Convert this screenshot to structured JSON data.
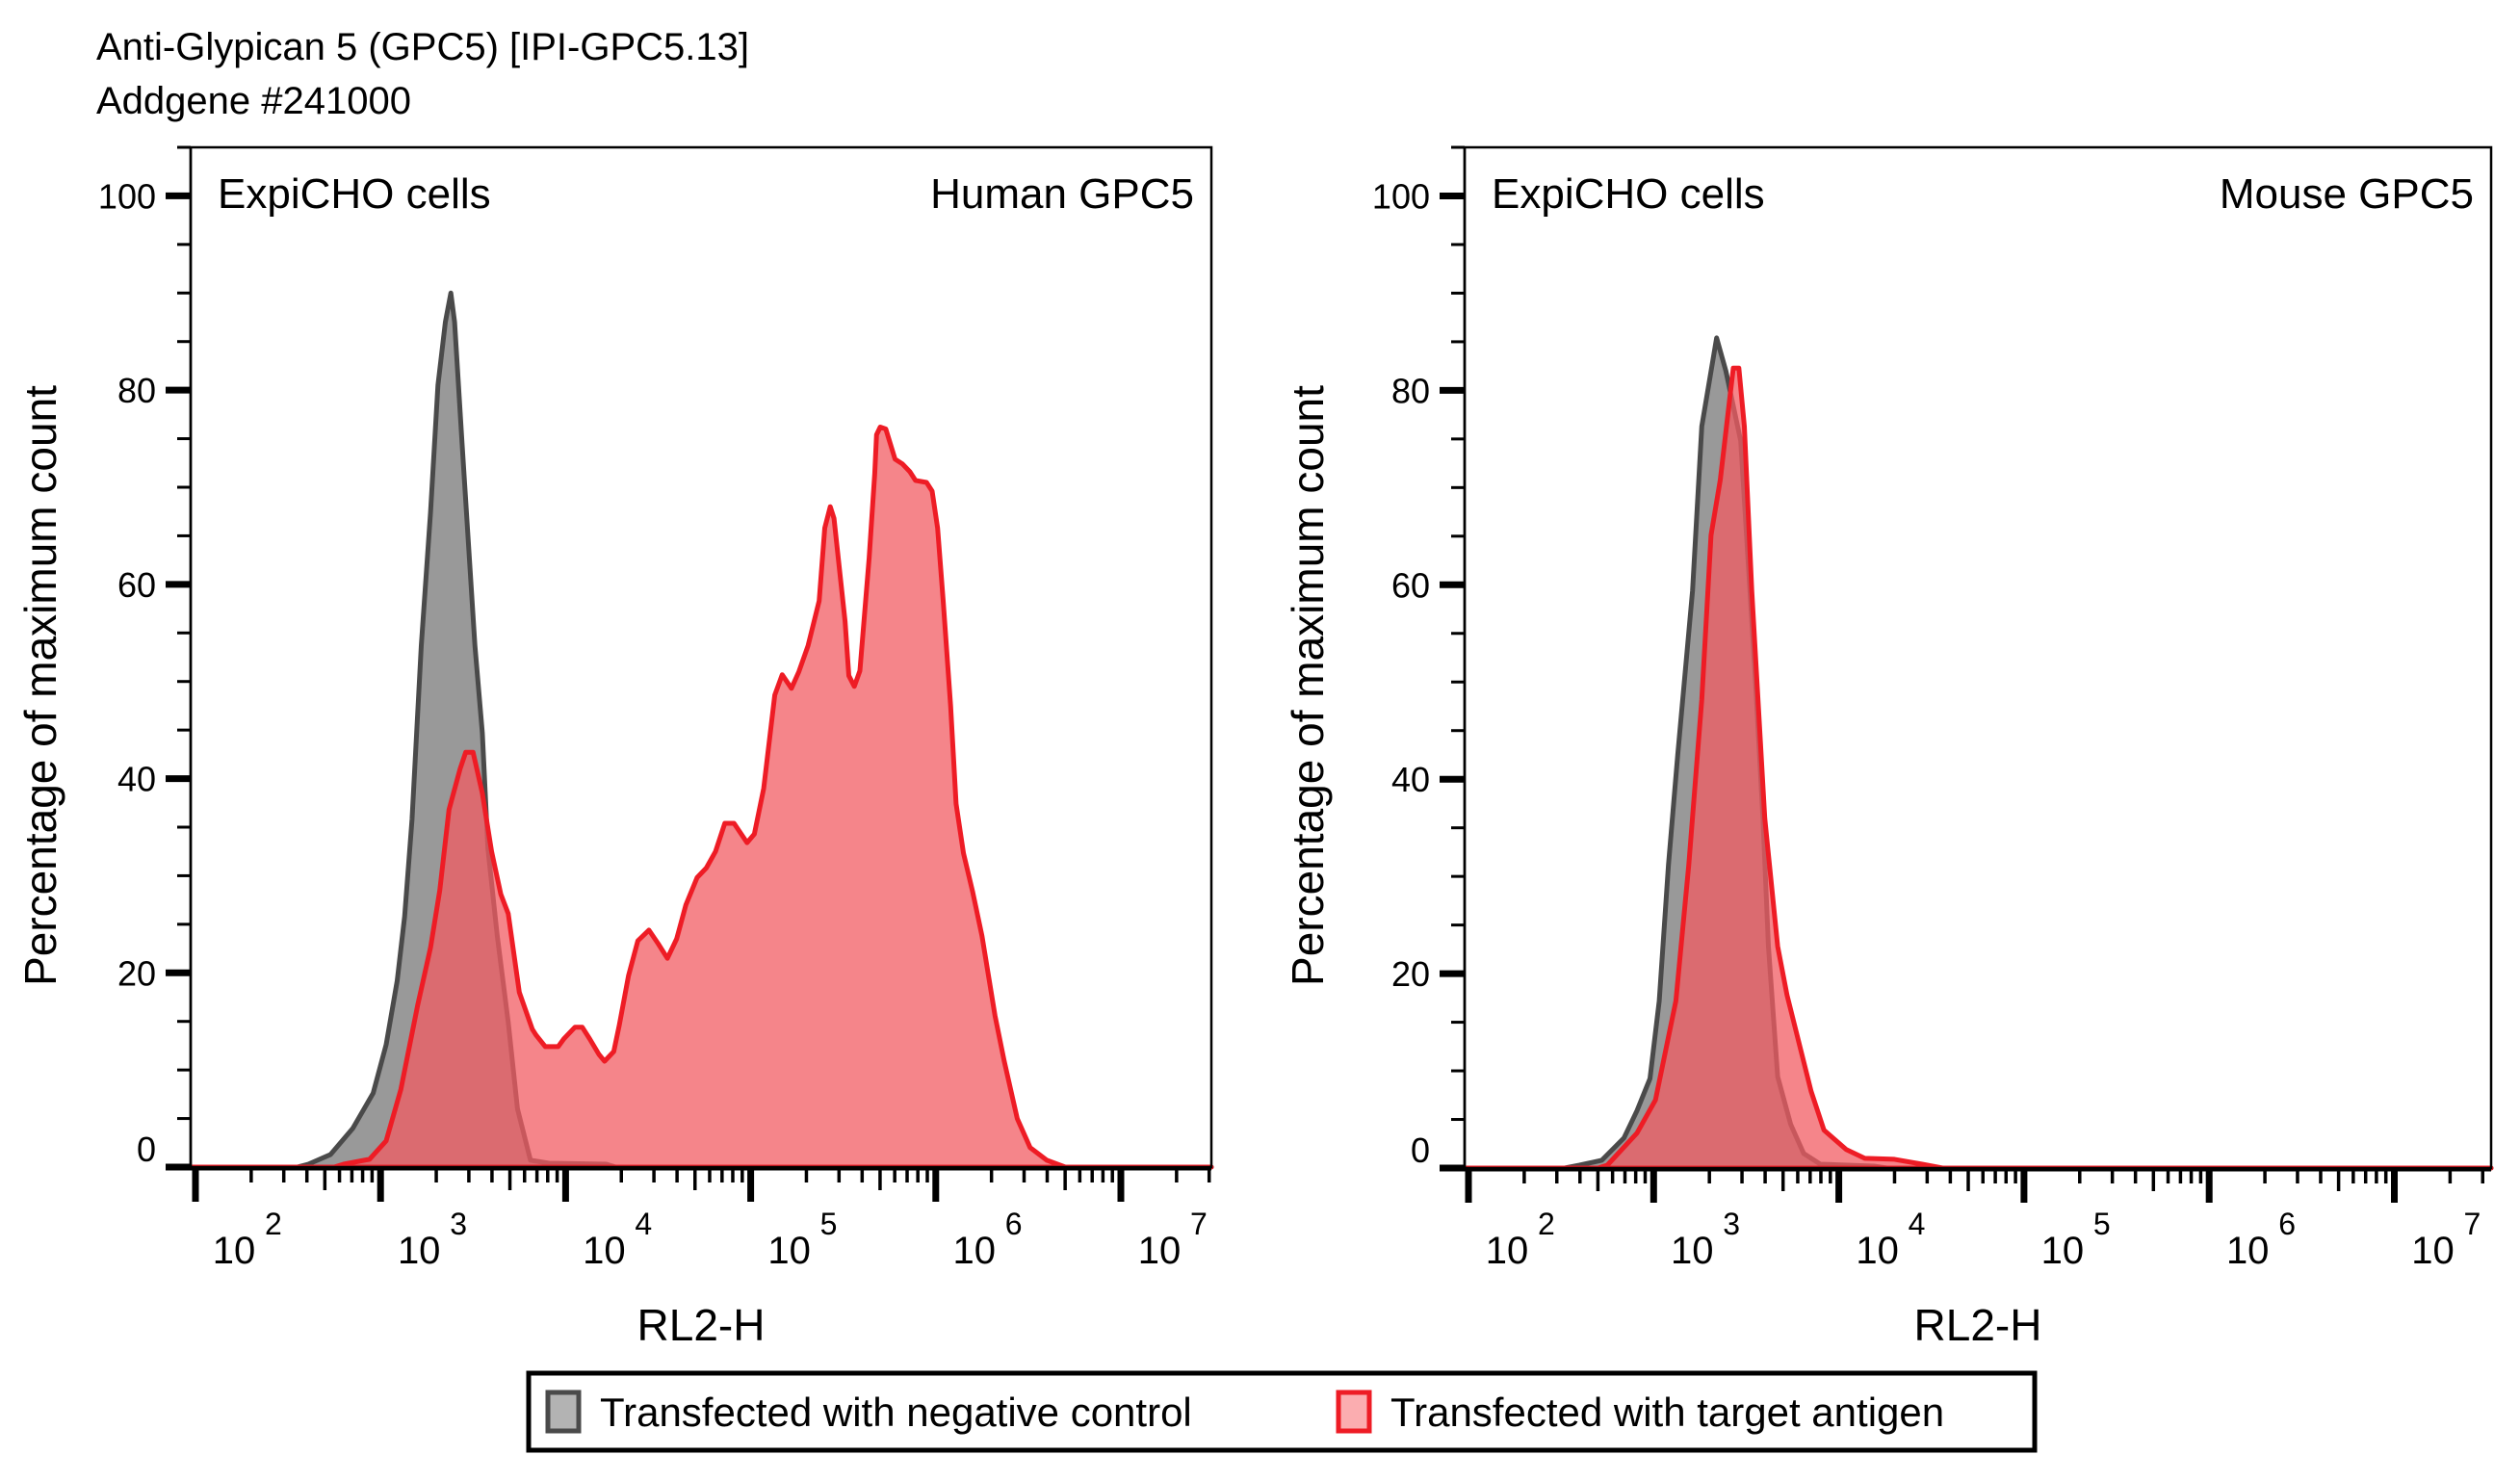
{
  "header": {
    "title": "Anti-Glypican 5 (GPC5) [IPI-GPC5.13]",
    "subtitle": "Addgene #241000"
  },
  "legend": {
    "items": [
      {
        "label": "Transfected with negative control",
        "fill": "#999999",
        "stroke": "#4a4a4a"
      },
      {
        "label": "Transfected with target antigen",
        "fill": "#f98387",
        "stroke": "#ee1c25"
      }
    ]
  },
  "colors": {
    "control_fill": "#999999",
    "control_stroke": "#4a4a4a",
    "antigen_fill": "#f25c63",
    "antigen_stroke": "#ee1c25",
    "overlap_fill": "#cf5256"
  },
  "chart_data": [
    {
      "type": "area",
      "title": "Human GPC5",
      "annotation_left": "ExpiCHO cells",
      "annotation_right": "Human GPC5",
      "xlabel": "RL2-H",
      "ylabel": "Percentage of maximum count",
      "x_scale": "log10",
      "x_units": "log10(RL2-H)",
      "xlim": [
        1.97,
        7.5
      ],
      "ylim": [
        0,
        105
      ],
      "x_ticks": [
        {
          "base": "10",
          "exp": "2",
          "value": 2
        },
        {
          "base": "10",
          "exp": "3",
          "value": 3
        },
        {
          "base": "10",
          "exp": "4",
          "value": 4
        },
        {
          "base": "10",
          "exp": "5",
          "value": 5
        },
        {
          "base": "10",
          "exp": "6",
          "value": 6
        },
        {
          "base": "10",
          "exp": "7",
          "value": 7
        }
      ],
      "y_ticks": [
        "0",
        "20",
        "40",
        "60",
        "80",
        "100"
      ],
      "grid": false,
      "series": [
        {
          "name": "Transfected with negative control",
          "x": [
            2.55,
            2.61,
            2.73,
            2.85,
            2.96,
            3.03,
            3.09,
            3.13,
            3.17,
            3.22,
            3.27,
            3.31,
            3.35,
            3.38,
            3.4,
            3.44,
            3.48,
            3.51,
            3.55,
            3.58,
            3.63,
            3.69,
            3.74,
            3.81,
            3.91,
            4.22,
            4.27
          ],
          "y": [
            0,
            0.3,
            1.3,
            4.0,
            7.6,
            12.6,
            19.2,
            25.8,
            35.8,
            53.7,
            67.4,
            80.5,
            87.0,
            90.0,
            87.0,
            74.6,
            62.6,
            53.7,
            44.7,
            32.8,
            23.9,
            14.9,
            6.0,
            0.7,
            0.4,
            0.3,
            0
          ]
        },
        {
          "name": "Transfected with target antigen",
          "x": [
            2.75,
            2.8,
            2.94,
            3.03,
            3.11,
            3.2,
            3.27,
            3.32,
            3.37,
            3.43,
            3.46,
            3.5,
            3.55,
            3.6,
            3.65,
            3.69,
            3.75,
            3.82,
            3.84,
            3.89,
            3.96,
            3.99,
            4.05,
            4.09,
            4.13,
            4.18,
            4.21,
            4.26,
            4.29,
            4.34,
            4.39,
            4.45,
            4.5,
            4.55,
            4.6,
            4.65,
            4.71,
            4.76,
            4.81,
            4.86,
            4.91,
            4.98,
            5.02,
            5.07,
            5.13,
            5.17,
            5.22,
            5.26,
            5.31,
            5.37,
            5.4,
            5.43,
            5.45,
            5.51,
            5.53,
            5.56,
            5.59,
            5.64,
            5.67,
            5.68,
            5.7,
            5.73,
            5.78,
            5.82,
            5.86,
            5.89,
            5.95,
            5.98,
            6.01,
            6.04,
            6.08,
            6.11,
            6.15,
            6.2,
            6.25,
            6.32,
            6.37,
            6.44,
            6.51,
            6.6,
            6.7
          ],
          "y": [
            0,
            0.3,
            0.8,
            2.7,
            8.0,
            16.6,
            22.6,
            28.5,
            36.8,
            41.0,
            42.7,
            42.7,
            38.5,
            32.5,
            28.1,
            26.1,
            18.0,
            14.2,
            13.6,
            12.4,
            12.4,
            13.2,
            14.4,
            14.4,
            13.2,
            11.6,
            10.9,
            11.9,
            14.6,
            19.7,
            23.3,
            24.4,
            23.0,
            21.5,
            23.5,
            27.0,
            29.8,
            30.8,
            32.5,
            35.4,
            35.4,
            33.4,
            34.3,
            39.0,
            48.6,
            50.7,
            49.3,
            51.0,
            53.7,
            58.3,
            65.8,
            68.0,
            66.8,
            56.2,
            50.6,
            49.5,
            51.1,
            62.7,
            71.4,
            75.4,
            76.2,
            76.0,
            72.9,
            72.4,
            71.6,
            70.7,
            70.5,
            69.6,
            65.8,
            58.3,
            47.5,
            37.4,
            32.3,
            28.3,
            23.8,
            15.6,
            10.9,
            5.0,
            2.0,
            0.7,
            0
          ]
        }
      ]
    },
    {
      "type": "area",
      "title": "Mouse GPC5",
      "annotation_left": "ExpiCHO cells",
      "annotation_right": "Mouse GPC5",
      "xlabel": "RL2-H",
      "ylabel": "Percentage of maximum count",
      "x_scale": "log10",
      "x_units": "log10(RL2-H)",
      "xlim": [
        1.98,
        7.5
      ],
      "ylim": [
        0,
        105
      ],
      "x_ticks": [
        {
          "base": "10",
          "exp": "2",
          "value": 2
        },
        {
          "base": "10",
          "exp": "3",
          "value": 3
        },
        {
          "base": "10",
          "exp": "4",
          "value": 4
        },
        {
          "base": "10",
          "exp": "5",
          "value": 5
        },
        {
          "base": "10",
          "exp": "6",
          "value": 6
        },
        {
          "base": "10",
          "exp": "7",
          "value": 7
        }
      ],
      "y_ticks": [
        "0",
        "20",
        "40",
        "60",
        "80",
        "100"
      ],
      "grid": false,
      "series": [
        {
          "name": "Transfected with negative control",
          "x": [
            2.52,
            2.6,
            2.72,
            2.84,
            2.91,
            2.98,
            3.03,
            3.08,
            3.13,
            3.21,
            3.26,
            3.34,
            3.39,
            3.47,
            3.52,
            3.55,
            3.59,
            3.62,
            3.67,
            3.74,
            3.81,
            3.9,
            4.19,
            4.26
          ],
          "y": [
            0,
            0.3,
            0.8,
            3.1,
            5.9,
            9.2,
            17.2,
            31.2,
            42.5,
            59.4,
            76.3,
            85.4,
            82.0,
            74.8,
            59.4,
            50.0,
            36.0,
            22.8,
            9.4,
            4.5,
            1.5,
            0.4,
            0.2,
            0
          ]
        },
        {
          "name": "Transfected with target antigen",
          "x": [
            2.7,
            2.75,
            2.91,
            3.01,
            3.12,
            3.19,
            3.26,
            3.31,
            3.36,
            3.43,
            3.46,
            3.49,
            3.53,
            3.6,
            3.67,
            3.72,
            3.85,
            3.92,
            4.04,
            4.14,
            4.3,
            4.45,
            4.56
          ],
          "y": [
            0,
            0.3,
            3.6,
            7.0,
            17.2,
            31.2,
            48.2,
            65.1,
            70.8,
            82.3,
            82.3,
            76.3,
            59.4,
            36.0,
            22.8,
            17.8,
            7.9,
            3.9,
            1.9,
            1.0,
            0.9,
            0.4,
            0
          ]
        }
      ]
    }
  ]
}
